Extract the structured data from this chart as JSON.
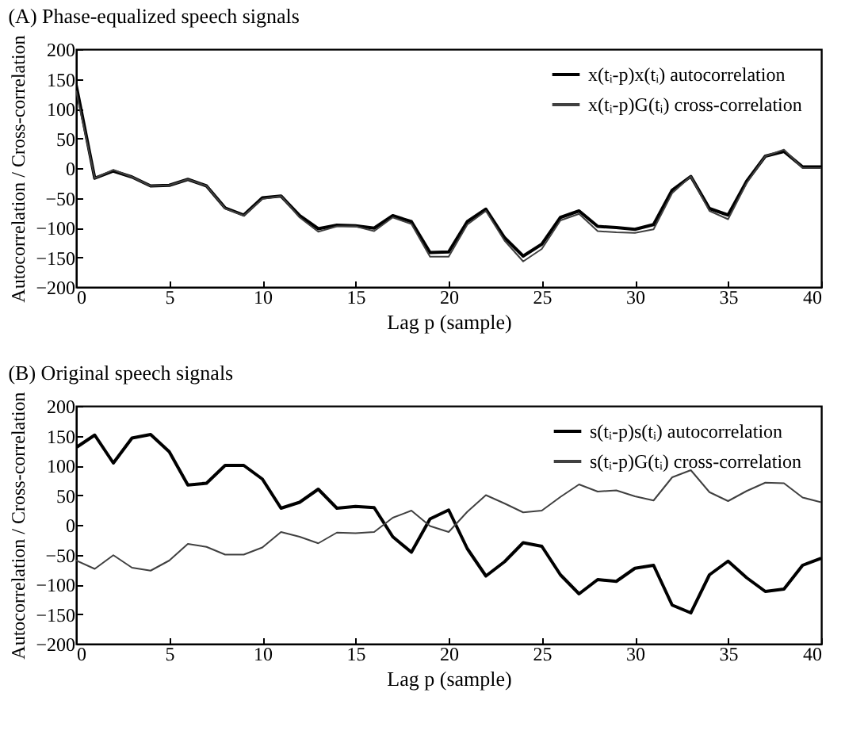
{
  "chart_data": [
    {
      "type": "line",
      "title": "(A) Phase-equalized speech signals",
      "xlabel": "Lag p (sample)",
      "ylabel": "Autocorrelation / Cross-correlation",
      "x": [
        0,
        1,
        2,
        3,
        4,
        5,
        6,
        7,
        8,
        9,
        10,
        11,
        12,
        13,
        14,
        15,
        16,
        17,
        18,
        19,
        20,
        21,
        22,
        23,
        24,
        25,
        26,
        27,
        28,
        29,
        30,
        31,
        32,
        33,
        34,
        35,
        36,
        37,
        38,
        39,
        40
      ],
      "series": [
        {
          "name": "x(tᵢ-p)x(tᵢ)   autocorrelation",
          "color": "#000000",
          "values": [
            140,
            -17,
            -5,
            -15,
            -30,
            -29,
            -19,
            -30,
            -67,
            -79,
            -50,
            -47,
            -80,
            -102,
            -96,
            -97,
            -101,
            -80,
            -90,
            -142,
            -141,
            -90,
            -69,
            -117,
            -148,
            -128,
            -83,
            -72,
            -98,
            -100,
            -103,
            -95,
            -37,
            -14,
            -68,
            -79,
            -22,
            20,
            28,
            2,
            2
          ]
        },
        {
          "name": "x(tᵢ-p)G(tᵢ)   cross-correlation",
          "color": "#404040",
          "values": [
            130,
            -17,
            -3,
            -15,
            -30,
            -29,
            -19,
            -30,
            -68,
            -80,
            -52,
            -47,
            -83,
            -107,
            -98,
            -98,
            -106,
            -83,
            -94,
            -149,
            -149,
            -95,
            -72,
            -122,
            -157,
            -136,
            -88,
            -77,
            -106,
            -108,
            -109,
            -103,
            -42,
            -14,
            -72,
            -86,
            -25,
            20,
            31,
            0,
            0
          ]
        }
      ],
      "xlim": [
        0,
        40
      ],
      "xticks": [
        0,
        5,
        10,
        15,
        20,
        25,
        30,
        35,
        40
      ],
      "ylim": [
        -200,
        200
      ],
      "yticks": [
        -200,
        -150,
        -100,
        -50,
        0,
        50,
        100,
        150,
        200
      ],
      "grid": false,
      "legend": "top right"
    },
    {
      "type": "line",
      "title": "(B) Original speech signals",
      "xlabel": "Lag p (sample)",
      "ylabel": "Autocorrelation / Cross-correlation",
      "x": [
        0,
        1,
        2,
        3,
        4,
        5,
        6,
        7,
        8,
        9,
        10,
        11,
        12,
        13,
        14,
        15,
        16,
        17,
        18,
        19,
        20,
        21,
        22,
        23,
        24,
        25,
        26,
        27,
        28,
        29,
        30,
        31,
        32,
        33,
        34,
        35,
        36,
        37,
        38,
        39,
        40
      ],
      "series": [
        {
          "name": "s(tᵢ-p)s(tᵢ)   autocorrelation",
          "color": "#000000",
          "values": [
            130,
            151,
            104,
            146,
            152,
            123,
            67,
            70,
            100,
            100,
            77,
            28,
            38,
            60,
            28,
            31,
            29,
            -20,
            -46,
            10,
            25,
            -40,
            -86,
            -62,
            -30,
            -36,
            -84,
            -116,
            -92,
            -95,
            -73,
            -68,
            -135,
            -148,
            -84,
            -61,
            -89,
            -112,
            -108,
            -68,
            -56
          ]
        },
        {
          "name": "s(tᵢ-p)G(tᵢ)   cross-correlation",
          "color": "#404040",
          "values": [
            -60,
            -74,
            -51,
            -72,
            -77,
            -60,
            -32,
            -37,
            -50,
            -50,
            -38,
            -12,
            -20,
            -31,
            -13,
            -14,
            -12,
            12,
            24,
            -2,
            -12,
            22,
            50,
            36,
            21,
            24,
            47,
            68,
            56,
            58,
            48,
            41,
            80,
            92,
            55,
            40,
            57,
            71,
            70,
            46,
            38
          ]
        }
      ],
      "xlim": [
        0,
        40
      ],
      "xticks": [
        0,
        5,
        10,
        15,
        20,
        25,
        30,
        35,
        40
      ],
      "ylim": [
        -200,
        200
      ],
      "yticks": [
        -200,
        -150,
        -100,
        -50,
        0,
        50,
        100,
        150,
        200
      ],
      "grid": false,
      "legend": "top right"
    }
  ]
}
